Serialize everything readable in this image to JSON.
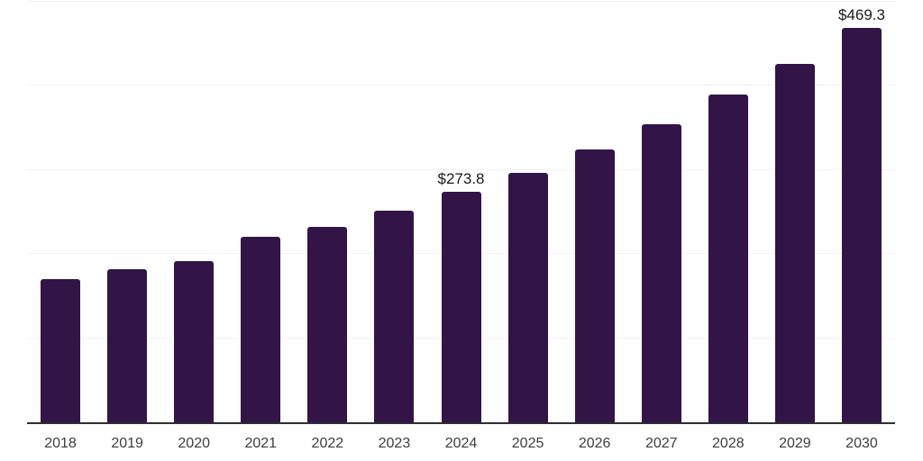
{
  "chart_data": {
    "type": "bar",
    "title": "",
    "xlabel": "",
    "ylabel": "",
    "categories": [
      "2018",
      "2019",
      "2020",
      "2021",
      "2022",
      "2023",
      "2024",
      "2025",
      "2026",
      "2027",
      "2028",
      "2029",
      "2030"
    ],
    "values": [
      170.2,
      182.0,
      191.6,
      220.6,
      232.0,
      251.7,
      273.8,
      296.4,
      323.9,
      354.1,
      389.5,
      425.8,
      469.3
    ],
    "data_labels": [
      null,
      null,
      null,
      null,
      null,
      null,
      "$273.8",
      null,
      null,
      null,
      null,
      null,
      "$469.3"
    ],
    "ylim": [
      0,
      500
    ],
    "gridline_values": [
      100,
      200,
      300,
      400,
      500
    ],
    "grid": "horizontal",
    "legend_position": "none",
    "y_tick_labels_visible": false,
    "colors": {
      "bar": "#321447",
      "axis_line": "#2e2e33",
      "gridline": "#f2f2f2",
      "data_label": "#1a1a1a",
      "tick_label": "#3d3d3d",
      "background": "#ffffff"
    }
  }
}
